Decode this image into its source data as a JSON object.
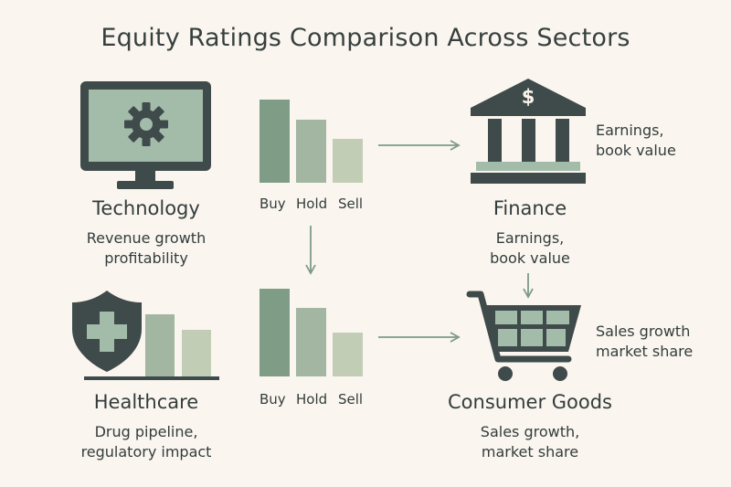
{
  "title": "Equity Ratings Comparison Across Sectors",
  "palette": {
    "dark": "#3f4a4a",
    "screen": "#a3bba9",
    "bar_buy": "#7f9c87",
    "bar_hold": "#a2b6a2",
    "bar_sell": "#c1cdb5",
    "background": "#faf6ef"
  },
  "sectors": {
    "technology": {
      "name": "Technology",
      "desc_line1": "Revenue growth",
      "desc_line2": "profitability",
      "icon": "monitor-gear-icon"
    },
    "finance": {
      "name": "Finance",
      "desc_line1": "Earnings,",
      "desc_line2": "book value",
      "side_line1": "Earnings,",
      "side_line2": "book value",
      "icon": "bank-dollar-icon"
    },
    "healthcare": {
      "name": "Healthcare",
      "desc_line1": "Drug pipeline,",
      "desc_line2": "regulatory impact",
      "icon": "shield-cross-icon"
    },
    "consumer": {
      "name": "Consumer Goods",
      "desc_line1": "Sales growth,",
      "desc_line2": "market share",
      "side_line1": "Sales growth",
      "side_line2": "market share",
      "icon": "shopping-cart-icon"
    }
  },
  "rating_labels": {
    "buy": "Buy",
    "hold": "Hold",
    "sell": "Sell"
  }
}
